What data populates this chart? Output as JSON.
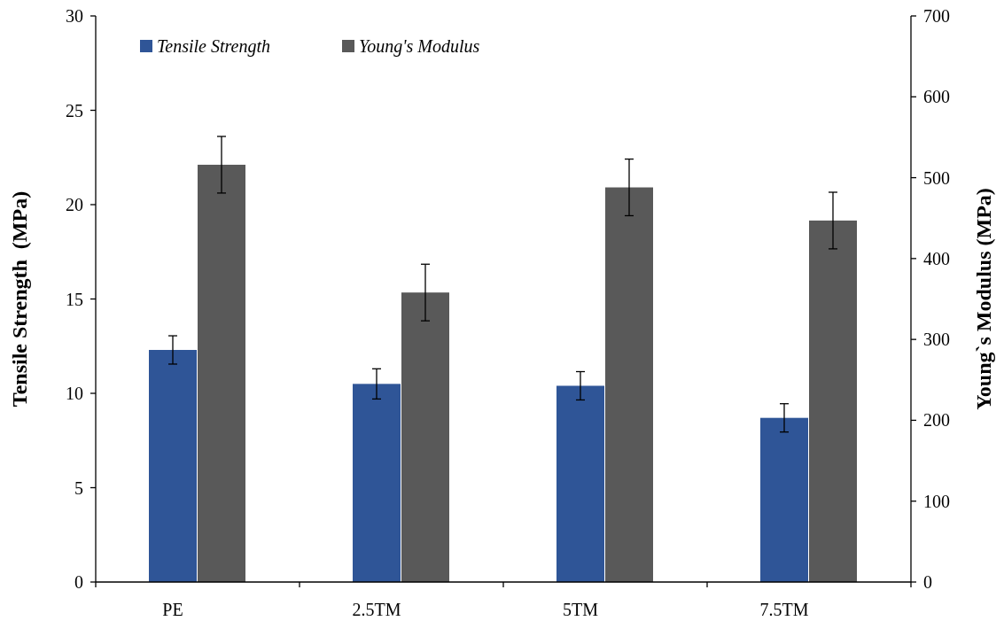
{
  "chart_data": {
    "type": "bar",
    "categories": [
      "PE",
      "2.5TM",
      "5TM",
      "7.5TM"
    ],
    "series": [
      {
        "name": "Tensile Strength",
        "color": "#2f5597",
        "values": [
          12.3,
          10.5,
          10.4,
          8.7
        ],
        "errors": [
          0.75,
          0.8,
          0.75,
          0.75
        ]
      },
      {
        "name": "Young's Modulus",
        "color": "#595959",
        "values": [
          516,
          358,
          488,
          447
        ],
        "errors": [
          35,
          35,
          35,
          35
        ],
        "axis": "y2"
      }
    ],
    "ylabel": "Tensile Strength  (MPa)",
    "y2label": "Young`s Modulus (MPa)",
    "ylim": [
      0,
      30
    ],
    "yticks": [
      0,
      5,
      10,
      15,
      20,
      25,
      30
    ],
    "y2lim": [
      0,
      700
    ],
    "y2ticks": [
      0,
      100,
      200,
      300,
      400,
      500,
      600,
      700
    ],
    "grid": false,
    "legend": "top left"
  }
}
